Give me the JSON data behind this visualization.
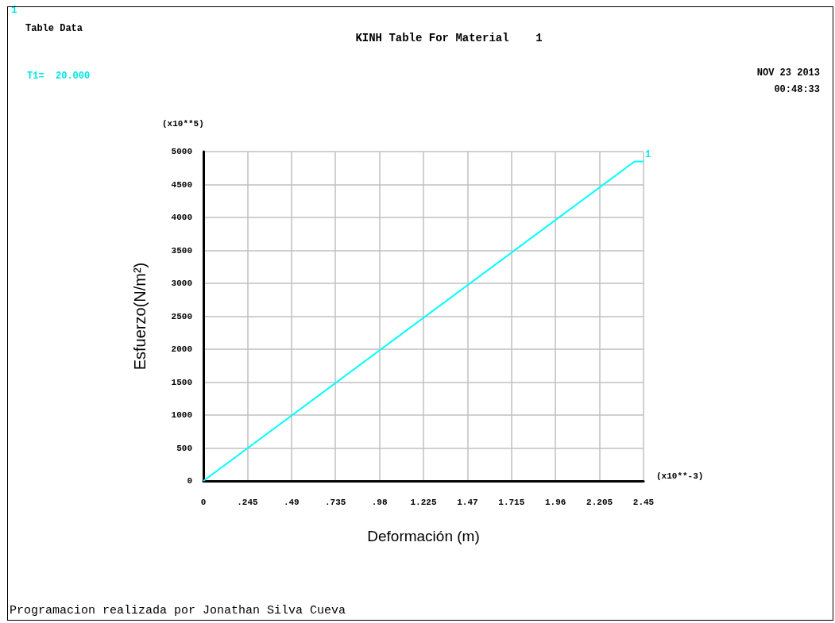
{
  "chart_data": {
    "type": "line",
    "title": "KINH Table For Material    1",
    "xlabel": "Deformación (m)",
    "ylabel": "Esfuerzo(N/m²)",
    "x": [
      0,
      2.4,
      2.45
    ],
    "series": [
      {
        "color": "#00ffff",
        "values": [
          0,
          4850,
          4850
        ]
      }
    ],
    "xlim": [
      0,
      2.45
    ],
    "xticks": [
      0,
      {
        "value": 0.245,
        "label": ".245"
      },
      {
        "value": 0.49,
        "label": ".49"
      },
      {
        "value": 0.735,
        "label": ".735"
      },
      {
        "value": 0.98,
        "label": ".98"
      },
      1.225,
      1.47,
      1.715,
      1.96,
      2.205,
      2.45
    ],
    "ylim": [
      0,
      5000
    ],
    "yticks": [
      0,
      500,
      1000,
      1500,
      2000,
      2500,
      3000,
      3500,
      4000,
      4500,
      5000
    ],
    "grid": true,
    "marker": "none",
    "line_style": "solid",
    "annotations": [
      "1",
      "Table Data",
      "T1=  20.000",
      "NOV 23 2013",
      "00:48:33",
      "(x10**5)",
      "(x10**-3)",
      "Programacion realizada por Jonathan Silva Cueva",
      {
        "text": "1",
        "x": 2.45,
        "y": 4850
      }
    ]
  }
}
